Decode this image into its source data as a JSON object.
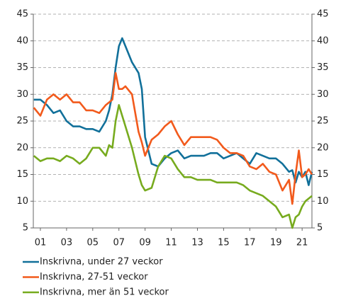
{
  "chart_data": {
    "type": "line",
    "x": [
      0.5,
      1,
      1.5,
      2,
      2.5,
      3,
      3.5,
      4,
      4.5,
      5,
      5.5,
      6,
      6.25,
      6.5,
      6.75,
      7,
      7.25,
      7.5,
      8,
      8.5,
      8.75,
      9,
      9.5,
      10,
      10.5,
      11,
      11.5,
      12,
      12.5,
      13,
      13.5,
      14,
      14.5,
      15,
      15.5,
      16,
      16.5,
      17,
      17.5,
      18,
      18.5,
      19,
      19.5,
      20,
      20.25,
      20.5,
      20.75,
      21,
      21.25,
      21.5,
      21.75
    ],
    "series": [
      {
        "name": "Inskrivna, under 27 veckor",
        "color": "#11709a",
        "values": [
          29,
          29,
          28,
          26.5,
          27,
          25,
          24,
          24,
          23.5,
          23.5,
          23,
          25,
          27,
          30,
          35,
          39,
          40.5,
          39,
          36,
          34,
          31,
          22,
          17,
          16.5,
          18,
          19,
          19.5,
          18,
          18.5,
          18.5,
          18.5,
          19,
          19,
          18,
          18.5,
          19,
          18,
          17,
          19,
          18.5,
          18,
          18,
          17,
          15.5,
          15.8,
          13.5,
          15.5,
          14.5,
          15.5,
          13,
          15.5
        ]
      },
      {
        "name": "Inskrivna, 27-51 veckor",
        "color": "#f25a1c",
        "values": [
          27.5,
          26,
          29,
          30,
          29,
          30,
          28.5,
          28.5,
          27,
          27,
          26.5,
          28,
          28.5,
          29,
          34,
          31,
          31,
          31.5,
          30,
          23,
          21,
          18.5,
          21.5,
          22.5,
          24,
          25,
          22.5,
          20.5,
          22,
          22,
          22,
          22,
          21.5,
          20,
          19,
          19,
          18.5,
          16.5,
          16,
          17,
          15.5,
          15,
          12,
          14,
          9.5,
          15,
          19.5,
          14.5,
          15,
          16,
          15
        ]
      },
      {
        "name": "Inskrivna, mer än 51 veckor",
        "color": "#77ab1e",
        "values": [
          18.5,
          17.5,
          18,
          18,
          17.5,
          18.5,
          18,
          17,
          18,
          20,
          20,
          18.5,
          20.5,
          20,
          25,
          28,
          26,
          24,
          20,
          15,
          13,
          12,
          12.5,
          16.5,
          18.5,
          18,
          16,
          14.5,
          14.5,
          14,
          14,
          14,
          13.5,
          13.5,
          13.5,
          13.5,
          13,
          12,
          11.5,
          11,
          10,
          9,
          7,
          7.5,
          5,
          7,
          7.5,
          9,
          10,
          10.5,
          11
        ]
      }
    ],
    "xlim": [
      0.46,
      21.75
    ],
    "xticks": [
      {
        "value": 1,
        "label": "01"
      },
      {
        "value": 3,
        "label": "03"
      },
      {
        "value": 5,
        "label": "05"
      },
      {
        "value": 7,
        "label": "07"
      },
      {
        "value": 9,
        "label": "09"
      },
      {
        "value": 11,
        "label": "11"
      },
      {
        "value": 13,
        "label": "13"
      },
      {
        "value": 15,
        "label": "15"
      },
      {
        "value": 17,
        "label": "17"
      },
      {
        "value": 19,
        "label": "19"
      },
      {
        "value": 21,
        "label": "21"
      }
    ],
    "ylim": [
      5,
      45
    ],
    "yticks": [
      5,
      10,
      15,
      20,
      25,
      30,
      35,
      40,
      45
    ],
    "y2lim": [
      5,
      45
    ],
    "y2ticks": [
      5,
      10,
      15,
      20,
      25,
      30,
      35,
      40,
      45
    ],
    "grid": true
  }
}
